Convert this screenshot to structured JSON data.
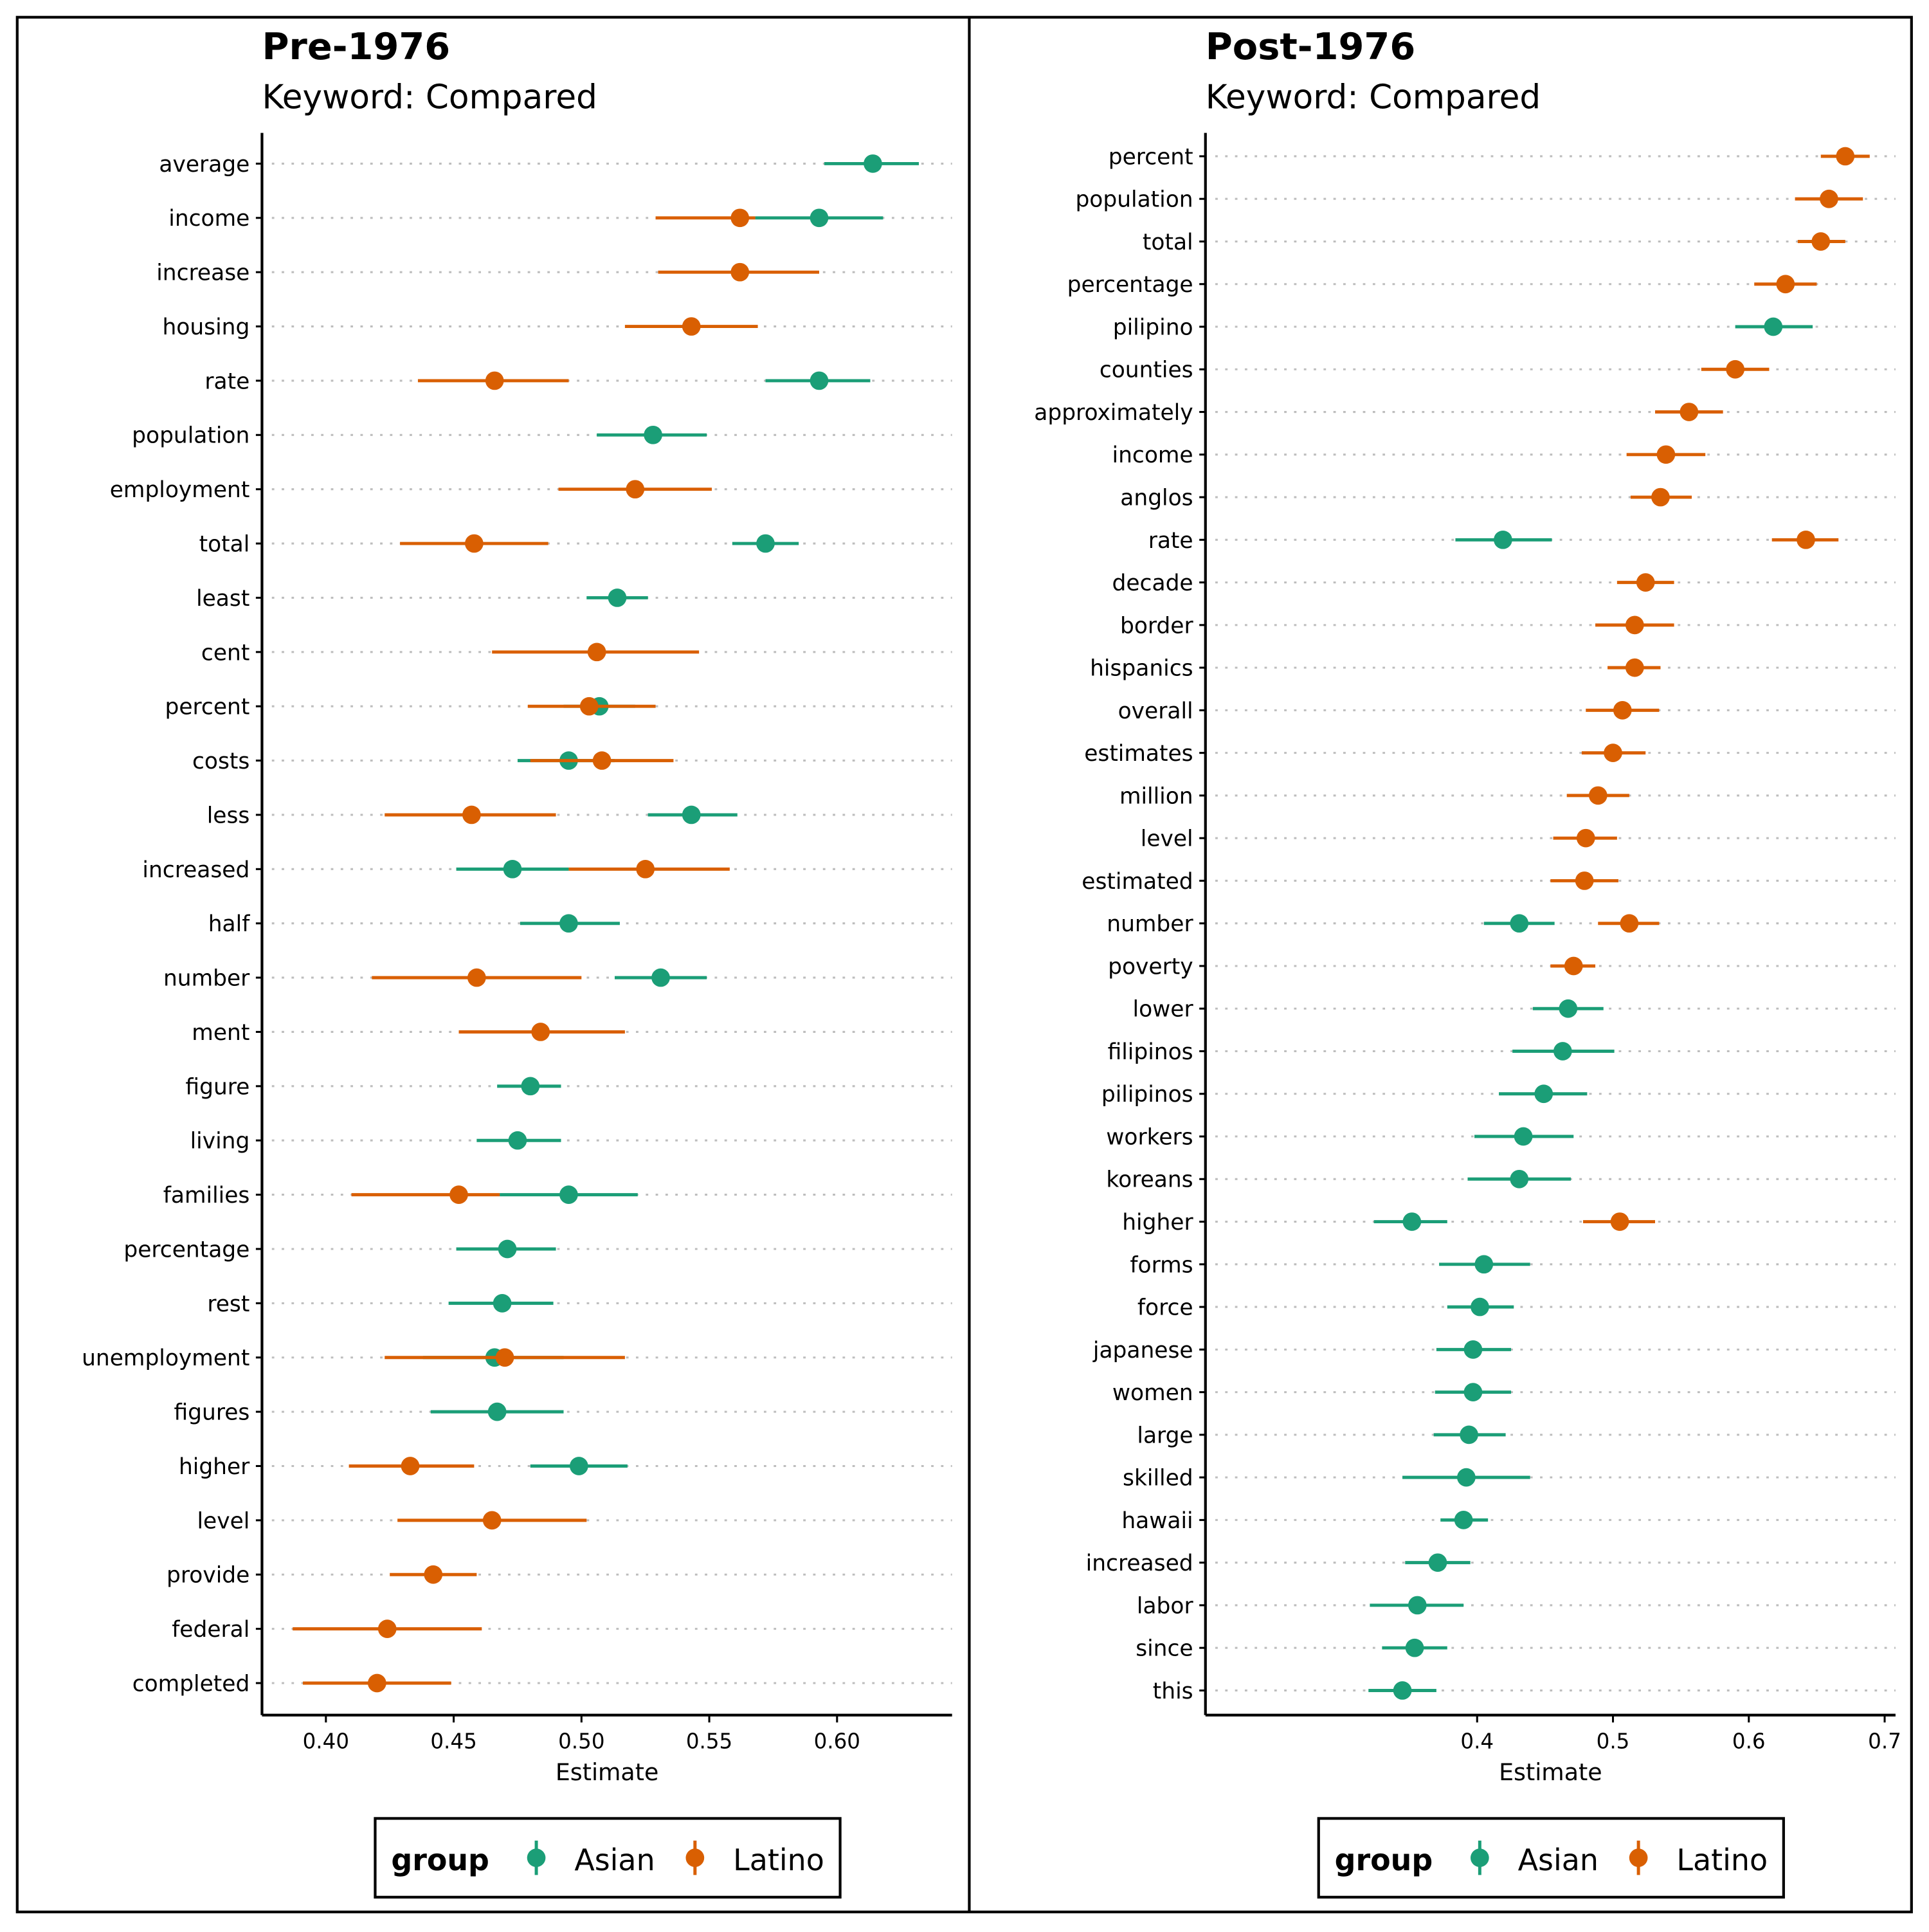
{
  "colors": {
    "Asian": "#1b9e77",
    "Latino": "#d95f02",
    "grid": "#bdbdbd",
    "axis": "#000000"
  },
  "chart_data": [
    {
      "type": "dot-interval",
      "title": "Pre-1976",
      "subtitle": "Keyword: Compared",
      "xlabel": "Estimate",
      "ylabel": "",
      "xlim": [
        0.375,
        0.645
      ],
      "xticks": [
        0.4,
        0.45,
        0.5,
        0.55,
        0.6
      ],
      "xtick_labels": [
        "0.40",
        "0.45",
        "0.50",
        "0.55",
        "0.60"
      ],
      "grid": "dotted horizontal",
      "legend": {
        "title": "group",
        "position": "bottom",
        "entries": [
          "Asian",
          "Latino"
        ]
      },
      "categories": [
        "average",
        "income",
        "increase",
        "housing",
        "rate",
        "population",
        "employment",
        "total",
        "least",
        "cent",
        "percent",
        "costs",
        "less",
        "increased",
        "half",
        "number",
        "ment",
        "figure",
        "living",
        "families",
        "percentage",
        "rest",
        "unemployment",
        "figures",
        "higher",
        "level",
        "provide",
        "federal",
        "completed"
      ],
      "series": [
        {
          "name": "Asian",
          "points": [
            {
              "category": "average",
              "estimate": 0.614,
              "low": 0.595,
              "high": 0.632
            },
            {
              "category": "income",
              "estimate": 0.593,
              "low": 0.568,
              "high": 0.618
            },
            {
              "category": "rate",
              "estimate": 0.593,
              "low": 0.572,
              "high": 0.613
            },
            {
              "category": "population",
              "estimate": 0.528,
              "low": 0.506,
              "high": 0.549
            },
            {
              "category": "total",
              "estimate": 0.572,
              "low": 0.559,
              "high": 0.585
            },
            {
              "category": "least",
              "estimate": 0.514,
              "low": 0.502,
              "high": 0.526
            },
            {
              "category": "percent",
              "estimate": 0.507,
              "low": 0.493,
              "high": 0.521
            },
            {
              "category": "costs",
              "estimate": 0.495,
              "low": 0.475,
              "high": 0.513
            },
            {
              "category": "less",
              "estimate": 0.543,
              "low": 0.526,
              "high": 0.561
            },
            {
              "category": "increased",
              "estimate": 0.473,
              "low": 0.451,
              "high": 0.495
            },
            {
              "category": "half",
              "estimate": 0.495,
              "low": 0.476,
              "high": 0.515
            },
            {
              "category": "number",
              "estimate": 0.531,
              "low": 0.513,
              "high": 0.549
            },
            {
              "category": "figure",
              "estimate": 0.48,
              "low": 0.467,
              "high": 0.492
            },
            {
              "category": "living",
              "estimate": 0.475,
              "low": 0.459,
              "high": 0.492
            },
            {
              "category": "families",
              "estimate": 0.495,
              "low": 0.468,
              "high": 0.522
            },
            {
              "category": "percentage",
              "estimate": 0.471,
              "low": 0.451,
              "high": 0.49
            },
            {
              "category": "rest",
              "estimate": 0.469,
              "low": 0.448,
              "high": 0.489
            },
            {
              "category": "unemployment",
              "estimate": 0.466,
              "low": 0.438,
              "high": 0.493
            },
            {
              "category": "figures",
              "estimate": 0.467,
              "low": 0.441,
              "high": 0.493
            },
            {
              "category": "higher",
              "estimate": 0.499,
              "low": 0.48,
              "high": 0.518
            }
          ]
        },
        {
          "name": "Latino",
          "points": [
            {
              "category": "income",
              "estimate": 0.562,
              "low": 0.529,
              "high": 0.568
            },
            {
              "category": "increase",
              "estimate": 0.562,
              "low": 0.53,
              "high": 0.593
            },
            {
              "category": "housing",
              "estimate": 0.543,
              "low": 0.517,
              "high": 0.569
            },
            {
              "category": "rate",
              "estimate": 0.466,
              "low": 0.436,
              "high": 0.495
            },
            {
              "category": "employment",
              "estimate": 0.521,
              "low": 0.491,
              "high": 0.551
            },
            {
              "category": "total",
              "estimate": 0.458,
              "low": 0.429,
              "high": 0.487
            },
            {
              "category": "cent",
              "estimate": 0.506,
              "low": 0.465,
              "high": 0.546
            },
            {
              "category": "percent",
              "estimate": 0.503,
              "low": 0.479,
              "high": 0.529
            },
            {
              "category": "costs",
              "estimate": 0.508,
              "low": 0.48,
              "high": 0.536
            },
            {
              "category": "less",
              "estimate": 0.457,
              "low": 0.423,
              "high": 0.49
            },
            {
              "category": "increased",
              "estimate": 0.525,
              "low": 0.495,
              "high": 0.558
            },
            {
              "category": "number",
              "estimate": 0.459,
              "low": 0.418,
              "high": 0.5
            },
            {
              "category": "ment",
              "estimate": 0.484,
              "low": 0.452,
              "high": 0.517
            },
            {
              "category": "families",
              "estimate": 0.452,
              "low": 0.41,
              "high": 0.468
            },
            {
              "category": "unemployment",
              "estimate": 0.47,
              "low": 0.423,
              "high": 0.517
            },
            {
              "category": "higher",
              "estimate": 0.433,
              "low": 0.409,
              "high": 0.458
            },
            {
              "category": "level",
              "estimate": 0.465,
              "low": 0.428,
              "high": 0.502
            },
            {
              "category": "provide",
              "estimate": 0.442,
              "low": 0.425,
              "high": 0.459
            },
            {
              "category": "federal",
              "estimate": 0.424,
              "low": 0.387,
              "high": 0.461
            },
            {
              "category": "completed",
              "estimate": 0.42,
              "low": 0.391,
              "high": 0.449
            }
          ]
        }
      ]
    },
    {
      "type": "dot-interval",
      "title": "Post-1976",
      "subtitle": "Keyword: Compared",
      "xlabel": "Estimate",
      "ylabel": "",
      "xlim": [
        0.2,
        0.708
      ],
      "xticks": [
        0.4,
        0.5,
        0.6,
        0.7
      ],
      "xtick_labels": [
        "0.4",
        "0.5",
        "0.6",
        "0.7"
      ],
      "grid": "dotted horizontal",
      "legend": {
        "title": "group",
        "position": "bottom",
        "entries": [
          "Asian",
          "Latino"
        ]
      },
      "categories": [
        "percent",
        "population",
        "total",
        "percentage",
        "pilipino",
        "counties",
        "approximately",
        "income",
        "anglos",
        "rate",
        "decade",
        "border",
        "hispanics",
        "overall",
        "estimates",
        "million",
        "level",
        "estimated",
        "number",
        "poverty",
        "lower",
        "filipinos",
        "pilipinos",
        "workers",
        "koreans",
        "higher",
        "forms",
        "force",
        "japanese",
        "women",
        "large",
        "skilled",
        "hawaii",
        "increased",
        "labor",
        "since",
        "this"
      ],
      "series": [
        {
          "name": "Asian",
          "points": [
            {
              "category": "pilipino",
              "estimate": 0.618,
              "low": 0.59,
              "high": 0.647
            },
            {
              "category": "rate",
              "estimate": 0.419,
              "low": 0.384,
              "high": 0.455
            },
            {
              "category": "number",
              "estimate": 0.431,
              "low": 0.405,
              "high": 0.457
            },
            {
              "category": "lower",
              "estimate": 0.467,
              "low": 0.441,
              "high": 0.493
            },
            {
              "category": "filipinos",
              "estimate": 0.463,
              "low": 0.426,
              "high": 0.501
            },
            {
              "category": "pilipinos",
              "estimate": 0.449,
              "low": 0.416,
              "high": 0.481
            },
            {
              "category": "workers",
              "estimate": 0.434,
              "low": 0.398,
              "high": 0.471
            },
            {
              "category": "koreans",
              "estimate": 0.431,
              "low": 0.393,
              "high": 0.469
            },
            {
              "category": "higher",
              "estimate": 0.352,
              "low": 0.324,
              "high": 0.378
            },
            {
              "category": "forms",
              "estimate": 0.405,
              "low": 0.372,
              "high": 0.439
            },
            {
              "category": "force",
              "estimate": 0.402,
              "low": 0.378,
              "high": 0.427
            },
            {
              "category": "japanese",
              "estimate": 0.397,
              "low": 0.37,
              "high": 0.425
            },
            {
              "category": "women",
              "estimate": 0.397,
              "low": 0.369,
              "high": 0.425
            },
            {
              "category": "large",
              "estimate": 0.394,
              "low": 0.368,
              "high": 0.421
            },
            {
              "category": "skilled",
              "estimate": 0.392,
              "low": 0.345,
              "high": 0.439
            },
            {
              "category": "hawaii",
              "estimate": 0.39,
              "low": 0.373,
              "high": 0.408
            },
            {
              "category": "increased",
              "estimate": 0.371,
              "low": 0.347,
              "high": 0.395
            },
            {
              "category": "labor",
              "estimate": 0.356,
              "low": 0.321,
              "high": 0.39
            },
            {
              "category": "since",
              "estimate": 0.354,
              "low": 0.33,
              "high": 0.378
            },
            {
              "category": "this",
              "estimate": 0.345,
              "low": 0.32,
              "high": 0.37
            }
          ]
        },
        {
          "name": "Latino",
          "points": [
            {
              "category": "percent",
              "estimate": 0.671,
              "low": 0.653,
              "high": 0.689
            },
            {
              "category": "population",
              "estimate": 0.659,
              "low": 0.634,
              "high": 0.684
            },
            {
              "category": "total",
              "estimate": 0.653,
              "low": 0.636,
              "high": 0.671
            },
            {
              "category": "percentage",
              "estimate": 0.627,
              "low": 0.604,
              "high": 0.65
            },
            {
              "category": "counties",
              "estimate": 0.59,
              "low": 0.565,
              "high": 0.615
            },
            {
              "category": "approximately",
              "estimate": 0.556,
              "low": 0.531,
              "high": 0.581
            },
            {
              "category": "income",
              "estimate": 0.539,
              "low": 0.51,
              "high": 0.568
            },
            {
              "category": "anglos",
              "estimate": 0.535,
              "low": 0.513,
              "high": 0.558
            },
            {
              "category": "rate",
              "estimate": 0.642,
              "low": 0.617,
              "high": 0.666
            },
            {
              "category": "decade",
              "estimate": 0.524,
              "low": 0.503,
              "high": 0.545
            },
            {
              "category": "border",
              "estimate": 0.516,
              "low": 0.487,
              "high": 0.545
            },
            {
              "category": "hispanics",
              "estimate": 0.516,
              "low": 0.496,
              "high": 0.535
            },
            {
              "category": "overall",
              "estimate": 0.507,
              "low": 0.48,
              "high": 0.534
            },
            {
              "category": "estimates",
              "estimate": 0.5,
              "low": 0.477,
              "high": 0.524
            },
            {
              "category": "million",
              "estimate": 0.489,
              "low": 0.466,
              "high": 0.512
            },
            {
              "category": "level",
              "estimate": 0.48,
              "low": 0.456,
              "high": 0.503
            },
            {
              "category": "estimated",
              "estimate": 0.479,
              "low": 0.454,
              "high": 0.504
            },
            {
              "category": "number",
              "estimate": 0.512,
              "low": 0.489,
              "high": 0.534
            },
            {
              "category": "poverty",
              "estimate": 0.471,
              "low": 0.454,
              "high": 0.487
            },
            {
              "category": "higher",
              "estimate": 0.505,
              "low": 0.478,
              "high": 0.531
            }
          ]
        }
      ]
    }
  ]
}
